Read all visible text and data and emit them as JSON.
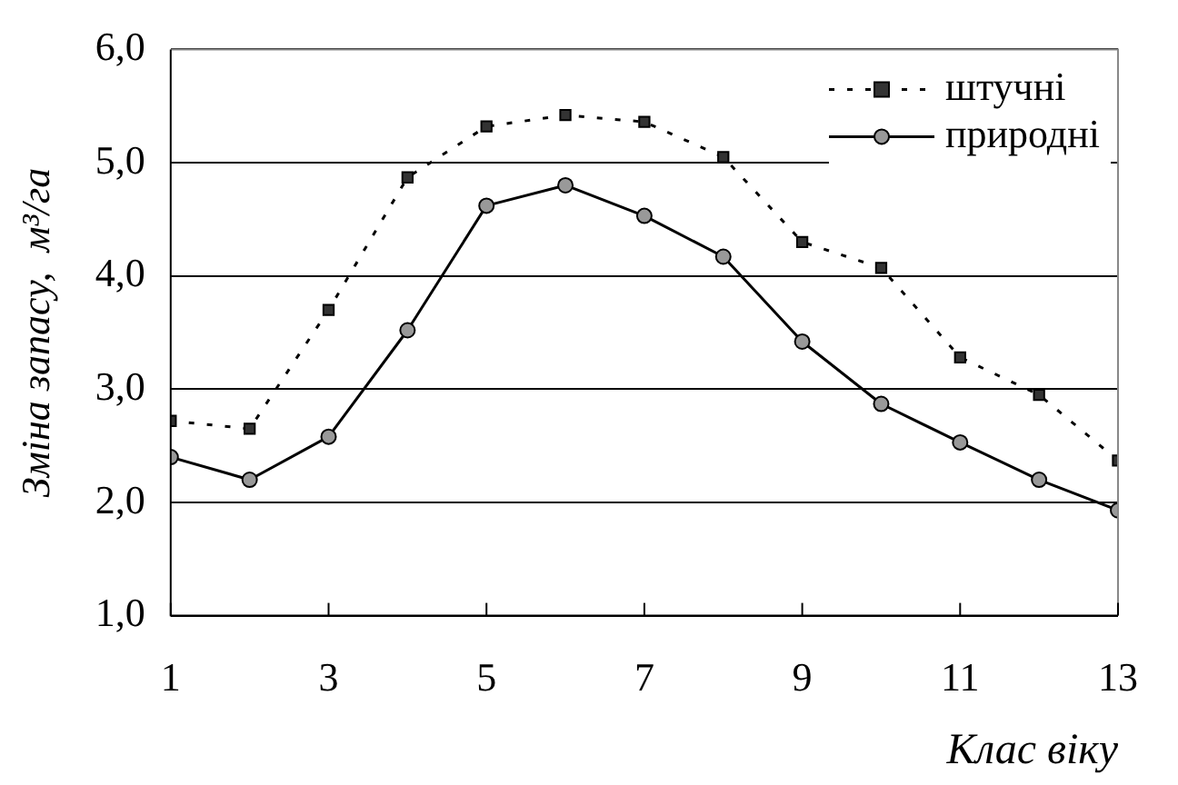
{
  "chart_data": {
    "type": "line",
    "xlabel": "Клас віку",
    "ylabel": "Зміна запасу,  м³/га",
    "x": [
      1,
      2,
      3,
      4,
      5,
      6,
      7,
      8,
      9,
      10,
      11,
      12,
      13
    ],
    "series": [
      {
        "name": "штучні",
        "color": "#000000",
        "values": [
          2.72,
          2.65,
          3.7,
          4.87,
          5.32,
          5.42,
          5.36,
          5.05,
          4.3,
          4.07,
          3.28,
          2.95,
          2.37
        ],
        "marker": "square",
        "line_style": "dotted"
      },
      {
        "name": "природні",
        "color": "#000000",
        "values": [
          2.4,
          2.2,
          2.58,
          3.52,
          4.62,
          4.8,
          4.53,
          4.17,
          3.42,
          2.87,
          2.53,
          2.2,
          1.93
        ],
        "marker": "circle",
        "line_style": "solid"
      }
    ],
    "xlim": [
      1,
      13
    ],
    "xticks": [
      1,
      3,
      5,
      7,
      9,
      11,
      13
    ],
    "ylim": [
      1,
      6
    ],
    "yticks": [
      {
        "value": 1,
        "label": "1,0"
      },
      {
        "value": 2,
        "label": "2,0"
      },
      {
        "value": 3,
        "label": "3,0"
      },
      {
        "value": 4,
        "label": "4,0"
      },
      {
        "value": 5,
        "label": "5,0"
      },
      {
        "value": 6,
        "label": "6,0"
      }
    ],
    "grid": "y",
    "legend": "top right"
  }
}
